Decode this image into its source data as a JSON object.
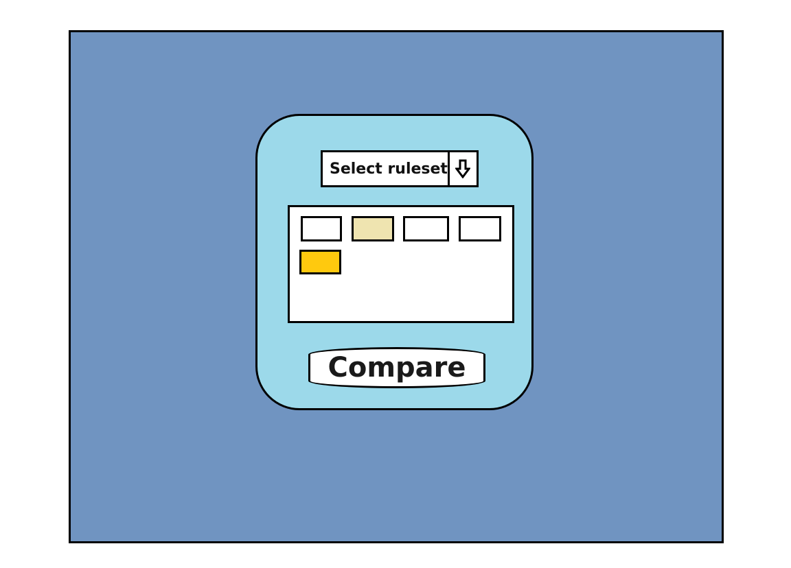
{
  "colors": {
    "screen_background": "#7094c1",
    "panel_background": "#9cd9ea",
    "border": "#000000"
  },
  "ruleset_dropdown": {
    "label": "Select ruleset",
    "toggle_icon": "down-arrow-icon"
  },
  "rules": [
    {
      "name": "rule-1",
      "color": "#ffffff"
    },
    {
      "name": "rule-2",
      "color": "#efe4b0"
    },
    {
      "name": "rule-3",
      "color": "#ffffff"
    },
    {
      "name": "rule-4",
      "color": "#ffffff"
    },
    {
      "name": "rule-5",
      "color": "#ffc90e"
    }
  ],
  "compare_button": {
    "label": "Compare"
  }
}
